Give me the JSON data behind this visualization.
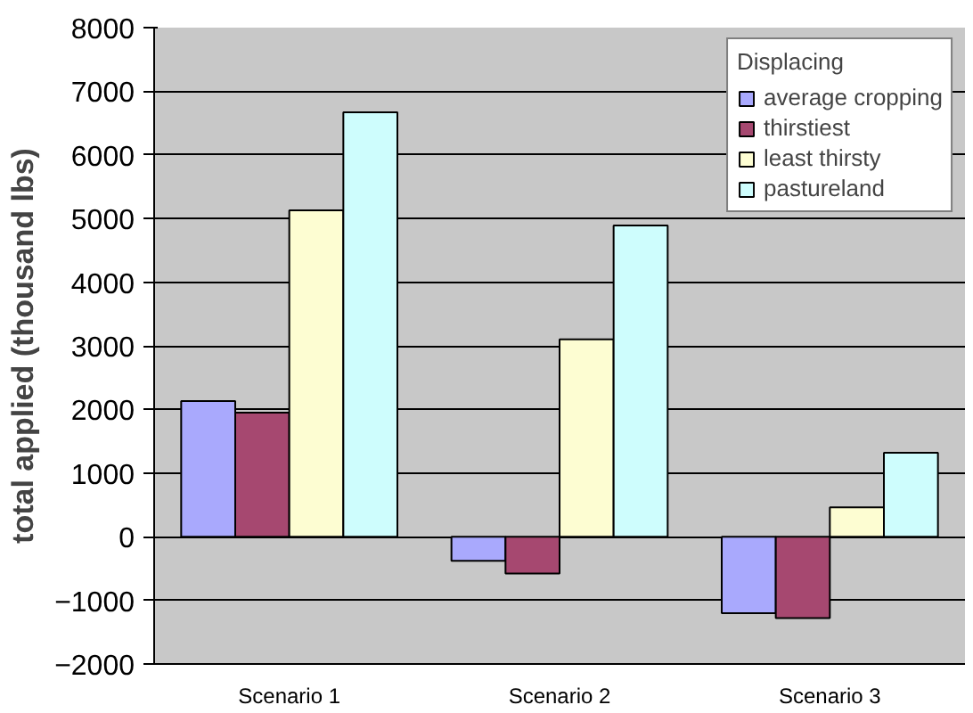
{
  "chart_data": {
    "type": "bar",
    "ylabel": "total applied (thousand lbs)",
    "legend_title": "Displacing",
    "categories": [
      "Scenario 1",
      "Scenario 2",
      "Scenario 3"
    ],
    "series": [
      {
        "name": "average cropping",
        "color": "#a9a9fd",
        "values": [
          2130,
          -380,
          -1200
        ]
      },
      {
        "name": "thirstiest",
        "color": "#a64870",
        "values": [
          1950,
          -580,
          -1280
        ]
      },
      {
        "name": "least thirsty",
        "color": "#fdfdd2",
        "values": [
          5130,
          3100,
          460
        ]
      },
      {
        "name": "pastureland",
        "color": "#cefdfd",
        "values": [
          6670,
          4890,
          1320
        ]
      }
    ],
    "ylim": [
      -2000,
      8000
    ],
    "yticks": [
      -2000,
      -1000,
      0,
      1000,
      2000,
      3000,
      4000,
      5000,
      6000,
      7000,
      8000
    ],
    "grid": "y",
    "legend": "top right"
  }
}
